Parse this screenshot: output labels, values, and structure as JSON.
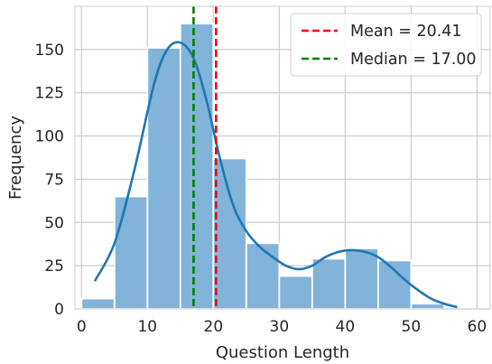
{
  "chart_data": {
    "type": "histogram",
    "title": "",
    "xlabel": "Question Length",
    "ylabel": "Frequency",
    "xlim": [
      -1,
      62
    ],
    "ylim": [
      0,
      175
    ],
    "xticks": [
      0,
      10,
      20,
      30,
      40,
      50,
      60
    ],
    "yticks": [
      0,
      25,
      50,
      75,
      100,
      125,
      150
    ],
    "grid": true,
    "legend_position": "top-right",
    "bins": [
      {
        "start": 0,
        "end": 5,
        "count": 6
      },
      {
        "start": 5,
        "end": 10,
        "count": 65
      },
      {
        "start": 10,
        "end": 15,
        "count": 151
      },
      {
        "start": 15,
        "end": 20,
        "count": 165
      },
      {
        "start": 20,
        "end": 25,
        "count": 87
      },
      {
        "start": 25,
        "end": 30,
        "count": 38
      },
      {
        "start": 30,
        "end": 35,
        "count": 19
      },
      {
        "start": 35,
        "end": 40,
        "count": 29
      },
      {
        "start": 40,
        "end": 45,
        "count": 35
      },
      {
        "start": 45,
        "end": 50,
        "count": 28
      },
      {
        "start": 50,
        "end": 55,
        "count": 3
      }
    ],
    "kde": {
      "x": [
        2,
        5,
        8,
        11,
        13,
        15,
        17,
        19,
        21,
        23,
        25,
        27,
        29,
        31,
        33,
        35,
        37,
        39,
        41,
        43,
        45,
        47,
        49,
        51,
        53,
        55,
        57
      ],
      "y": [
        16,
        38,
        80,
        130,
        150,
        154,
        145,
        120,
        87,
        60,
        45,
        36,
        30,
        25,
        23,
        25,
        30,
        33,
        34,
        33,
        30,
        24,
        17,
        11,
        6,
        3,
        1
      ]
    },
    "reference_lines": [
      {
        "label": "Mean = 20.41",
        "x": 20.41,
        "color": "#ff0000"
      },
      {
        "label": "Median = 17.00",
        "x": 17.0,
        "color": "#008000"
      }
    ],
    "colors": {
      "bar": "#82b3d8",
      "kde": "#1f77b4",
      "grid": "#cccccc"
    }
  }
}
